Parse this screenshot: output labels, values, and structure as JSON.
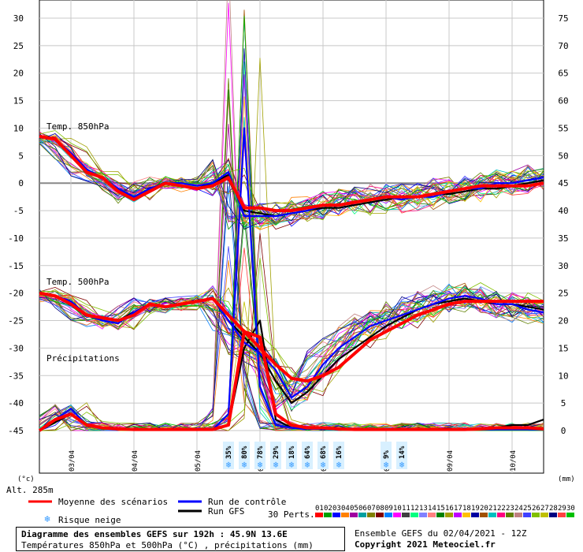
{
  "chart_data": {
    "type": "line",
    "title": "Diagramme des ensembles GEFS sur 192h : 45.9N 13.6E",
    "subtitle": "Températures 850hPa et 500hPa (°C) , précipitations (mm)",
    "left_axis_unit": "(°c)",
    "right_axis_unit": "(mm)",
    "altitude": "Alt. 285m",
    "ylim_left": [
      -45,
      30
    ],
    "ylim_right": [
      0,
      75
    ],
    "left_ticks": [
      "30",
      "25",
      "20",
      "15",
      "10",
      "5",
      "0",
      "-5",
      "-10",
      "-15",
      "-20",
      "-25",
      "-30",
      "-35",
      "-40",
      "-45"
    ],
    "right_ticks": [
      "75",
      "70",
      "65",
      "60",
      "55",
      "50",
      "45",
      "40",
      "35",
      "30",
      "25",
      "20",
      "15",
      "10",
      "5",
      "0"
    ],
    "x_ticks": [
      "03/04",
      "04/04",
      "05/04",
      "06/04",
      "07/04",
      "08/04",
      "09/04",
      "10/04"
    ],
    "panel_labels": {
      "t850": "Temp. 850hPa",
      "t500": "Temp. 500hPa",
      "precip": "Précipitations"
    },
    "snow_risk": [
      {
        "pct": "35%",
        "hour": 72
      },
      {
        "pct": "80%",
        "hour": 78
      },
      {
        "pct": "78%",
        "hour": 84
      },
      {
        "pct": "29%",
        "hour": 90
      },
      {
        "pct": "18%",
        "hour": 96
      },
      {
        "pct": "64%",
        "hour": 102
      },
      {
        "pct": "68%",
        "hour": 108
      },
      {
        "pct": "16%",
        "hour": 114
      },
      {
        "pct": "9%",
        "hour": 132
      },
      {
        "pct": "14%",
        "hour": 138
      }
    ],
    "hours": [
      0,
      6,
      12,
      18,
      24,
      30,
      36,
      42,
      48,
      54,
      60,
      66,
      72,
      78,
      84,
      90,
      96,
      102,
      108,
      114,
      120,
      126,
      132,
      138,
      144,
      150,
      156,
      162,
      168,
      174,
      180,
      186,
      192
    ],
    "series": [
      {
        "name": "Moyenne des scénarios",
        "color": "#ff0000",
        "t850": [
          8.5,
          8,
          5,
          2,
          1,
          -1.5,
          -3,
          -1.5,
          0,
          -0.5,
          -1,
          -0.5,
          1,
          -4.5,
          -4.5,
          -5,
          -5,
          -4.5,
          -4,
          -4,
          -3.5,
          -3,
          -2.5,
          -2.5,
          -2.5,
          -2,
          -1.5,
          -1,
          -0.5,
          -0.5,
          -0.5,
          -0.5,
          0
        ],
        "t500": [
          -20,
          -20.5,
          -22,
          -24,
          -24.5,
          -25,
          -24,
          -22,
          -22.5,
          -22,
          -21.5,
          -21,
          -24,
          -27,
          -30,
          -33,
          -35.5,
          -36,
          -35,
          -33.5,
          -31,
          -28.5,
          -27,
          -25.5,
          -24,
          -23,
          -22,
          -21.5,
          -21.5,
          -21.5,
          -21.5,
          -21.5,
          -21.5
        ],
        "precip": [
          0,
          2,
          3,
          1,
          0.5,
          0.3,
          0.2,
          0.2,
          0.2,
          0.2,
          0.2,
          0.2,
          1,
          18,
          17,
          3,
          1,
          0.5,
          0.5,
          0.3,
          0.2,
          0.2,
          0.2,
          0.2,
          0.2,
          0.2,
          0.2,
          0.2,
          0.3,
          0.5,
          0.5,
          0.5,
          0.3
        ]
      },
      {
        "name": "Run de contrôle",
        "color": "#0000ff",
        "t850": [
          8.5,
          8,
          5.5,
          2.5,
          1,
          -1,
          -2.5,
          -1,
          0,
          0,
          -0.5,
          0,
          2,
          -6,
          -6,
          -6,
          -5.5,
          -5,
          -4,
          -4,
          -3.5,
          -3,
          -2.5,
          -3,
          -2.5,
          -2.5,
          -1.5,
          -1,
          -1,
          0,
          0,
          0.5,
          1
        ],
        "t500": [
          -20,
          -20.5,
          -21.5,
          -24,
          -25,
          -25.5,
          -23.5,
          -22,
          -22.5,
          -22,
          -21.5,
          -21,
          -25,
          -29,
          -31,
          -34,
          -39,
          -37,
          -33,
          -30,
          -28,
          -26,
          -25,
          -24,
          -23,
          -22,
          -21,
          -20.5,
          -21,
          -22,
          -22,
          -23,
          -23.5
        ],
        "precip": [
          0,
          2,
          4,
          1,
          0.5,
          0.3,
          0.2,
          0.2,
          0.2,
          0.2,
          0.2,
          0.2,
          3,
          55,
          8,
          1,
          0.5,
          0.3,
          0.3,
          0.2,
          0.2,
          0.2,
          0.2,
          0.2,
          0.2,
          0.2,
          0.2,
          0.2,
          0.2,
          0.2,
          0.2,
          0.2,
          0.2
        ]
      },
      {
        "name": "Run GFS",
        "color": "#000000",
        "t850": [
          8.5,
          8,
          5,
          2,
          1,
          -1,
          -2.5,
          -1,
          0,
          -0.5,
          -1,
          0,
          1.5,
          -5,
          -5.5,
          -6,
          -5.5,
          -5,
          -4.5,
          -4.5,
          -4,
          -3.5,
          -3,
          -2.5,
          -2.5,
          -2,
          -2,
          -1.5,
          -1,
          -1,
          -0.5,
          0,
          0.5
        ],
        "t500": [
          -20,
          -20.5,
          -22,
          -24,
          -24.5,
          -25,
          -23.5,
          -22,
          -22.5,
          -22,
          -21.5,
          -21,
          -25,
          -28,
          -31,
          -36,
          -40,
          -38,
          -35,
          -32,
          -30,
          -28,
          -26,
          -24.5,
          -23,
          -22,
          -21.5,
          -21,
          -21.5,
          -22,
          -22,
          -22.5,
          -23
        ],
        "precip": [
          0,
          1.5,
          3,
          1,
          0.5,
          0.2,
          0.2,
          0.2,
          0.2,
          0.2,
          0.2,
          0.2,
          1,
          15,
          20,
          2,
          0.5,
          0.3,
          0.3,
          0.2,
          0.2,
          0.2,
          0.2,
          0.2,
          0.2,
          0.2,
          0.2,
          0.2,
          0.2,
          0.5,
          1,
          1,
          2
        ]
      }
    ],
    "perturbations_label": "30 Perts.",
    "perturbation_ids": [
      "01",
      "02",
      "03",
      "04",
      "05",
      "06",
      "07",
      "08",
      "09",
      "10",
      "11",
      "12",
      "13",
      "14",
      "15",
      "16",
      "17",
      "18",
      "19",
      "20",
      "21",
      "22",
      "23",
      "24",
      "25",
      "26",
      "27",
      "28",
      "29",
      "30"
    ],
    "perturbation_colors": [
      "#ff0000",
      "#00a000",
      "#0000ff",
      "#ff8000",
      "#a000a0",
      "#00a0a0",
      "#808000",
      "#800000",
      "#0080ff",
      "#ff00ff",
      "#404040",
      "#00ff80",
      "#8080ff",
      "#ff8080",
      "#008000",
      "#a0a000",
      "#c000ff",
      "#ffc000",
      "#0000a0",
      "#a05000",
      "#00c0c0",
      "#ff0080",
      "#608000",
      "#c08080",
      "#4040ff",
      "#80c000",
      "#c0c000",
      "#000080",
      "#ff4040",
      "#00c000"
    ],
    "legend": {
      "mean": "Moyenne des scénarios",
      "control": "Run de contrôle",
      "gfs": "Run GFS",
      "snow": "Risque neige"
    },
    "run_info": "Ensemble GEFS du 02/04/2021 - 12Z",
    "copyright": "Copyright 2021 Meteociel.fr"
  }
}
